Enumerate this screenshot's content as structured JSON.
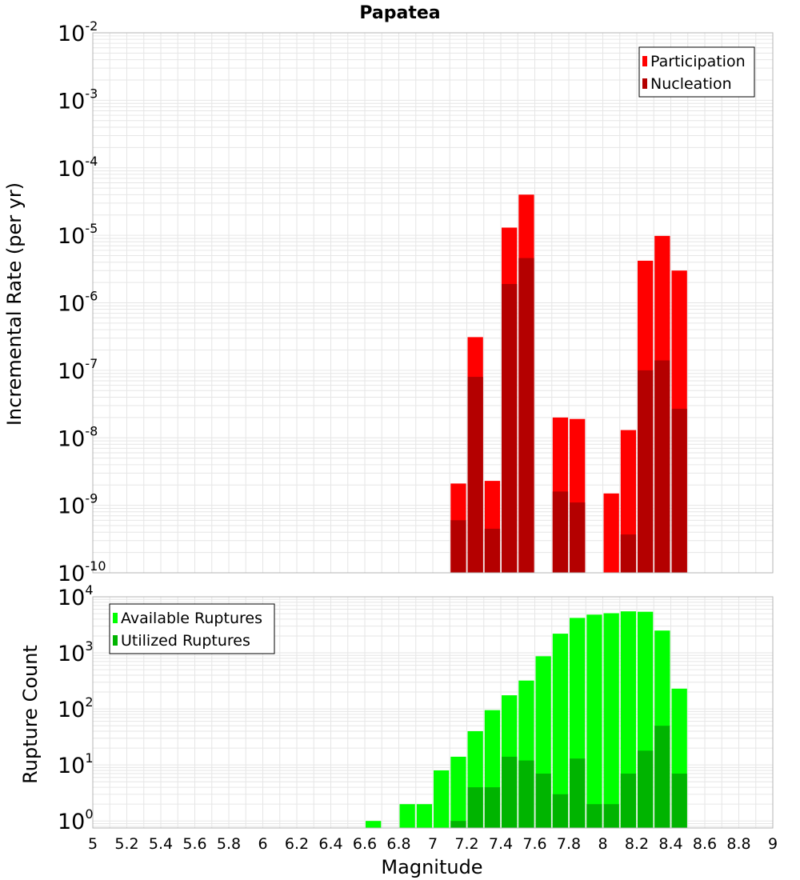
{
  "colors": {
    "participation": "#ff0000",
    "nucleation": "#b40000",
    "available": "#00ff00",
    "utilized": "#00b400",
    "grid": "#e6e6e6",
    "frame": "#b4b4b4"
  },
  "chart_data": [
    {
      "type": "bar",
      "title": "Papatea",
      "ylabel": "Incremental Rate (per yr)",
      "yscale": "log",
      "ylim": [
        1e-10,
        0.01
      ],
      "y_tick_exponents": [
        "-10",
        "-9",
        "-8",
        "-7",
        "-6",
        "-5",
        "-4",
        "-3",
        "-2"
      ],
      "y_tick_base": "10",
      "legend": {
        "position": "top-right",
        "entries": [
          "Participation",
          "Nucleation"
        ]
      },
      "x": [
        7.15,
        7.25,
        7.35,
        7.45,
        7.55,
        7.75,
        7.85,
        8.05,
        8.15,
        8.25,
        8.35,
        8.45
      ],
      "series": [
        {
          "name": "Participation",
          "values": [
            2.1e-09,
            3.1e-07,
            2.3e-09,
            1.3e-05,
            4e-05,
            2e-08,
            1.9e-08,
            1.5e-09,
            1.3e-08,
            4.2e-06,
            9.8e-06,
            3e-06
          ]
        },
        {
          "name": "Nucleation",
          "values": [
            6e-10,
            8e-08,
            4.5e-10,
            1.9e-06,
            4.6e-06,
            1.6e-09,
            1.1e-09,
            null,
            3.7e-10,
            1e-07,
            1.4e-07,
            2.7e-08
          ]
        }
      ],
      "grid": true
    },
    {
      "type": "bar",
      "ylabel": "Rupture Count",
      "xlabel": "Magnitude",
      "yscale": "log",
      "ylim": [
        0.75,
        10000
      ],
      "y_tick_exponents": [
        "0",
        "1",
        "2",
        "3",
        "4"
      ],
      "y_tick_base": "10",
      "xlim": [
        5,
        9
      ],
      "x_ticks": [
        "5",
        "5.2",
        "5.4",
        "5.6",
        "5.8",
        "6",
        "6.2",
        "6.4",
        "6.6",
        "6.8",
        "7",
        "7.2",
        "7.4",
        "7.6",
        "7.8",
        "8",
        "8.2",
        "8.4",
        "8.6",
        "8.8",
        "9"
      ],
      "legend": {
        "position": "top-left",
        "entries": [
          "Available Ruptures",
          "Utilized Ruptures"
        ]
      },
      "x": [
        6.65,
        6.85,
        6.95,
        7.05,
        7.15,
        7.25,
        7.35,
        7.45,
        7.55,
        7.65,
        7.75,
        7.85,
        7.95,
        8.05,
        8.15,
        8.25,
        8.35,
        8.45
      ],
      "series": [
        {
          "name": "Available Ruptures",
          "values": [
            1,
            2,
            2,
            8,
            14,
            40,
            95,
            175,
            320,
            870,
            2200,
            4200,
            4800,
            5100,
            5500,
            5400,
            2500,
            230
          ]
        },
        {
          "name": "Utilized Ruptures",
          "values": [
            null,
            null,
            null,
            null,
            1,
            4,
            4,
            14,
            12,
            7,
            3,
            13,
            2,
            2,
            7,
            18,
            50,
            7
          ]
        }
      ],
      "grid": true
    }
  ]
}
